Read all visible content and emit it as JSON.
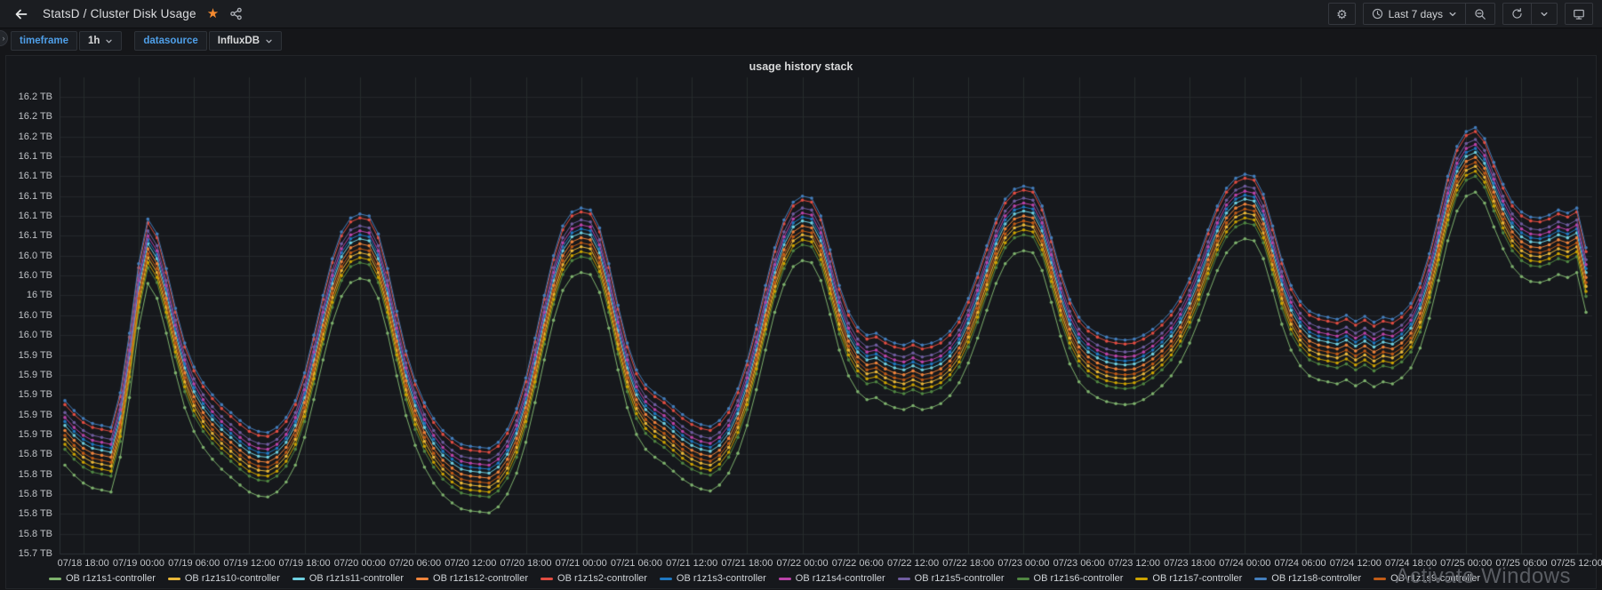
{
  "header": {
    "title": "StatsD / Cluster Disk Usage",
    "time_picker": {
      "label": "Last 7 days"
    }
  },
  "variables": [
    {
      "label": "timeframe",
      "value": "1h"
    },
    {
      "label": "datasource",
      "value": "InfluxDB"
    }
  ],
  "panel": {
    "title": "usage history stack"
  },
  "watermark": "Activate Windows",
  "chart_data": {
    "type": "line",
    "title": "usage history stack",
    "unit": "TB",
    "grid": true,
    "markers": true,
    "legend_position": "bottom",
    "y_min": 15.74,
    "y_max": 16.2,
    "y_tick_step": 0.02,
    "y_tick_labels": [
      "16.2 TB",
      "16.2 TB",
      "16.2 TB",
      "16.1 TB",
      "16.1 TB",
      "16.1 TB",
      "16.1 TB",
      "16.1 TB",
      "16.0 TB",
      "16.0 TB",
      "16 TB",
      "16.0 TB",
      "16.0 TB",
      "15.9 TB",
      "15.9 TB",
      "15.9 TB",
      "15.9 TB",
      "15.9 TB",
      "15.8 TB",
      "15.8 TB",
      "15.8 TB",
      "15.8 TB",
      "15.8 TB",
      "15.7 TB"
    ],
    "x_start_time": "07/18 16:00",
    "x_step_hours": 1,
    "x_first_tick_index": 2,
    "x_tick_every_hours": 6,
    "x_tick_labels": [
      "07/18 18:00",
      "07/19 00:00",
      "07/19 06:00",
      "07/19 12:00",
      "07/19 18:00",
      "07/20 00:00",
      "07/20 06:00",
      "07/20 12:00",
      "07/20 18:00",
      "07/21 00:00",
      "07/21 06:00",
      "07/21 12:00",
      "07/21 18:00",
      "07/22 00:00",
      "07/22 06:00",
      "07/22 12:00",
      "07/22 18:00",
      "07/23 00:00",
      "07/23 06:00",
      "07/23 12:00",
      "07/23 18:00",
      "07/24 00:00",
      "07/24 06:00",
      "07/24 12:00",
      "07/24 18:00",
      "07/25 00:00",
      "07/25 06:00",
      "07/25 12:00"
    ],
    "value_rule": "series value at hour i = base_values[i] + series.offset (TB)",
    "base_values": [
      15.872,
      15.862,
      15.854,
      15.849,
      15.847,
      15.845,
      15.88,
      15.94,
      16.01,
      16.055,
      16.04,
      16.005,
      15.965,
      15.93,
      15.906,
      15.89,
      15.878,
      15.868,
      15.86,
      15.852,
      15.845,
      15.841,
      15.84,
      15.845,
      15.855,
      15.872,
      15.9,
      15.938,
      15.978,
      16.015,
      16.042,
      16.056,
      16.06,
      16.058,
      16.04,
      16.005,
      15.962,
      15.922,
      15.892,
      15.87,
      15.854,
      15.842,
      15.834,
      15.828,
      15.826,
      15.825,
      15.824,
      15.83,
      15.843,
      15.864,
      15.895,
      15.935,
      15.978,
      16.018,
      16.048,
      16.062,
      16.066,
      16.064,
      16.046,
      16.01,
      15.968,
      15.93,
      15.903,
      15.888,
      15.88,
      15.874,
      15.866,
      15.858,
      15.852,
      15.848,
      15.846,
      15.852,
      15.864,
      15.884,
      15.912,
      15.948,
      15.988,
      16.026,
      16.054,
      16.072,
      16.078,
      16.076,
      16.058,
      16.024,
      15.988,
      15.962,
      15.946,
      15.938,
      15.94,
      15.934,
      15.93,
      15.928,
      15.932,
      15.928,
      15.93,
      15.934,
      15.942,
      15.955,
      15.975,
      16.0,
      16.028,
      16.055,
      16.075,
      16.085,
      16.088,
      16.086,
      16.068,
      16.036,
      16.002,
      15.974,
      15.956,
      15.946,
      15.94,
      15.936,
      15.934,
      15.933,
      15.934,
      15.938,
      15.944,
      15.952,
      15.962,
      15.976,
      15.995,
      16.018,
      16.044,
      16.068,
      16.086,
      16.096,
      16.1,
      16.098,
      16.08,
      16.048,
      16.014,
      15.988,
      15.972,
      15.962,
      15.958,
      15.956,
      15.954,
      15.958,
      15.952,
      15.957,
      15.951,
      15.956,
      15.954,
      15.96,
      15.97,
      15.99,
      16.02,
      16.058,
      16.098,
      16.128,
      16.143,
      16.147,
      16.136,
      16.112,
      16.09,
      16.072,
      16.062,
      16.057,
      16.056,
      16.059,
      16.064,
      16.061,
      16.066,
      16.026
    ],
    "series": [
      {
        "name": "OB r1z1s1-controller",
        "color": "#7EB26D",
        "offset": -0.043
      },
      {
        "name": "OB r1z1s10-controller",
        "color": "#EAB839",
        "offset": -0.017
      },
      {
        "name": "OB r1z1s11-controller",
        "color": "#6ED0E0",
        "offset": -0.003
      },
      {
        "name": "OB r1z1s12-controller",
        "color": "#EF843C",
        "offset": -0.008
      },
      {
        "name": "OB r1z1s2-controller",
        "color": "#E24D42",
        "offset": 0.018
      },
      {
        "name": "OB r1z1s3-controller",
        "color": "#1F78C1",
        "offset": 0.001
      },
      {
        "name": "OB r1z1s4-controller",
        "color": "#BA43A9",
        "offset": 0.005
      },
      {
        "name": "OB r1z1s5-controller",
        "color": "#705DA0",
        "offset": 0.01
      },
      {
        "name": "OB r1z1s6-controller",
        "color": "#508642",
        "offset": -0.027
      },
      {
        "name": "OB r1z1s7-controller",
        "color": "#CCA300",
        "offset": -0.022
      },
      {
        "name": "OB r1z1s8-controller",
        "color": "#447EBC",
        "offset": 0.022
      },
      {
        "name": "OB r1z1s9-controller",
        "color": "#C15C17",
        "offset": -0.013
      }
    ]
  }
}
